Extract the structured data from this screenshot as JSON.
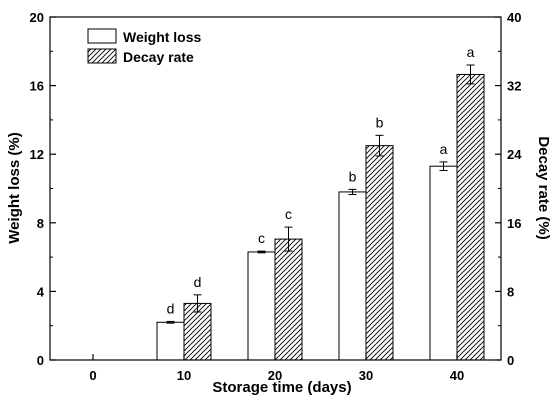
{
  "chart_data": {
    "type": "bar",
    "xlabel": "Storage time (days)",
    "ylabel_left": "Weight loss (%)",
    "ylabel_right": "Decay rate (%)",
    "categories": [
      "0",
      "10",
      "20",
      "30",
      "40"
    ],
    "ylim_left": [
      0,
      20
    ],
    "ylim_right": [
      0,
      40
    ],
    "yticks_left": [
      0,
      4,
      8,
      12,
      16,
      20
    ],
    "yticks_right": [
      0,
      8,
      16,
      24,
      32,
      40
    ],
    "legend_position": "top-left",
    "grid": false,
    "series": [
      {
        "name": "Weight loss",
        "axis": "left",
        "pattern": "open",
        "values": [
          null,
          2.2,
          6.3,
          9.8,
          11.3
        ],
        "errors": [
          null,
          0.05,
          0.05,
          0.15,
          0.25
        ],
        "labels": [
          "",
          "d",
          "c",
          "b",
          "a"
        ]
      },
      {
        "name": "Decay rate",
        "axis": "right",
        "pattern": "hatched",
        "values": [
          null,
          6.6,
          14.1,
          25.0,
          33.3
        ],
        "errors": [
          null,
          1.0,
          1.4,
          1.2,
          1.1
        ],
        "labels": [
          "",
          "d",
          "c",
          "b",
          "a"
        ]
      }
    ]
  }
}
